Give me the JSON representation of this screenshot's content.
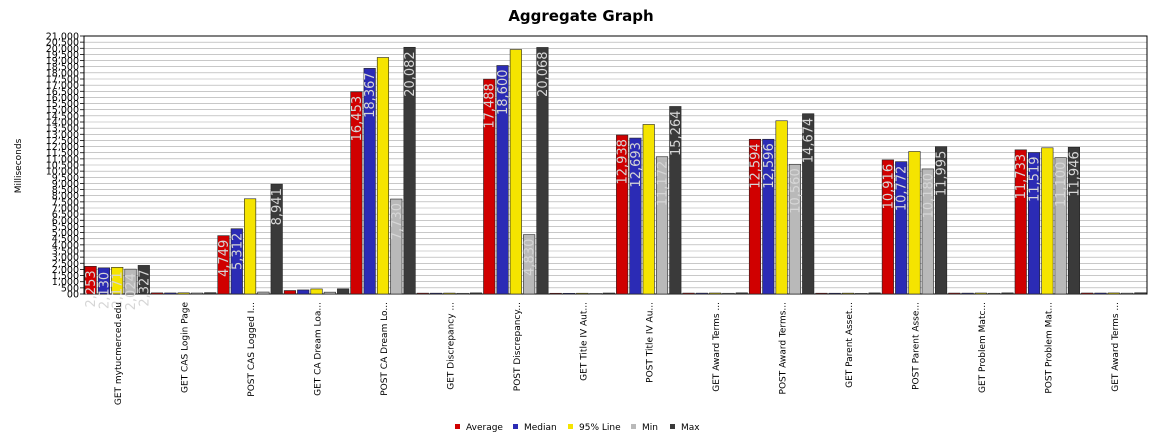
{
  "chart_data": {
    "type": "bar",
    "title": "Aggregate Graph",
    "ylabel": "Milliseconds",
    "xlabel": "",
    "ylim": [
      0,
      21000
    ],
    "ytick_step": 500,
    "yticks": [
      "00",
      "500",
      "1,000",
      "1,500",
      "2,000",
      "2,500",
      "3,000",
      "3,500",
      "4,000",
      "4,500",
      "5,000",
      "5,500",
      "6,000",
      "6,500",
      "7,000",
      "7,500",
      "8,000",
      "8,500",
      "9,000",
      "9,500",
      "10,000",
      "10,500",
      "11,000",
      "11,500",
      "12,000",
      "12,500",
      "13,000",
      "13,500",
      "14,000",
      "14,500",
      "15,000",
      "15,500",
      "16,000",
      "16,500",
      "17,000",
      "17,500",
      "18,000",
      "18,500",
      "19,000",
      "19,500",
      "20,000",
      "20,500",
      "21,000"
    ],
    "grid": true,
    "legend_position": "bottom",
    "categories": [
      "GET mytucmerced.edu",
      "GET CAS Login Page",
      "POST CAS Logged I...",
      "GET  CA Dream Loa...",
      "POST  CA Dream Lo...",
      "GET  Discrepancy ...",
      "POST  Discrepancy...",
      "GET  Title IV Aut...",
      "POST  Title IV Au...",
      "GET  Award Terms ...",
      "POST  Award Terms...",
      "GET  Parent Asset...",
      "POST  Parent Asse...",
      "GET  Problem Matc...",
      "POST  Problem Mat...",
      "GET  Award Terms ..."
    ],
    "series": [
      {
        "name": "Average",
        "color": "#d00000",
        "values": [
          2253,
          90,
          4749,
          282,
          16453,
          70,
          17488,
          60,
          12938,
          75,
          12594,
          65,
          10916,
          75,
          11733,
          80
        ]
      },
      {
        "name": "Median",
        "color": "#2b2bb5",
        "values": [
          2130,
          85,
          5312,
          330,
          18367,
          68,
          18600,
          58,
          12693,
          72,
          12596,
          64,
          10772,
          72,
          11519,
          78
        ]
      },
      {
        "name": "95% Line",
        "color": "#f5e400",
        "values": [
          2171,
          95,
          7750,
          410,
          19250,
          75,
          19900,
          64,
          13800,
          80,
          14100,
          70,
          11600,
          80,
          11900,
          86
        ]
      },
      {
        "name": "Min",
        "color": "#b9b9b9",
        "values": [
          2024,
          80,
          160,
          150,
          7730,
          60,
          4830,
          50,
          11172,
          62,
          10560,
          58,
          10180,
          62,
          11100,
          70
        ]
      },
      {
        "name": "Max",
        "color": "#3a3a3a",
        "values": [
          2327,
          110,
          8941,
          420,
          20082,
          90,
          20068,
          80,
          15264,
          95,
          14674,
          88,
          11995,
          90,
          11946,
          100
        ]
      }
    ],
    "bar_labels": [
      [
        "2,253",
        "2,130",
        "2,171",
        "2,024",
        "2,327"
      ],
      [
        "",
        "",
        "",
        "",
        ""
      ],
      [
        "4,749",
        "5,312",
        "",
        "",
        "8,941"
      ],
      [
        "",
        "",
        "",
        "",
        ""
      ],
      [
        "16,453",
        "18,367",
        "",
        "7,730",
        "20,082"
      ],
      [
        "",
        "",
        "",
        "",
        ""
      ],
      [
        "17,488",
        "18,600",
        "",
        "4,830",
        "20,068"
      ],
      [
        "",
        "",
        "",
        "",
        ""
      ],
      [
        "12,938",
        "12,693",
        "",
        "11,172",
        "15,264"
      ],
      [
        "",
        "",
        "",
        "",
        ""
      ],
      [
        "12,594",
        "12,596",
        "",
        "10,560",
        "14,674"
      ],
      [
        "",
        "",
        "",
        "",
        ""
      ],
      [
        "10,916",
        "10,772",
        "",
        "10,180",
        "11,995"
      ],
      [
        "",
        "",
        "",
        "",
        ""
      ],
      [
        "11,733",
        "11,519",
        "",
        "11,100",
        "11,946"
      ],
      [
        "",
        "",
        "",
        "",
        ""
      ]
    ]
  }
}
